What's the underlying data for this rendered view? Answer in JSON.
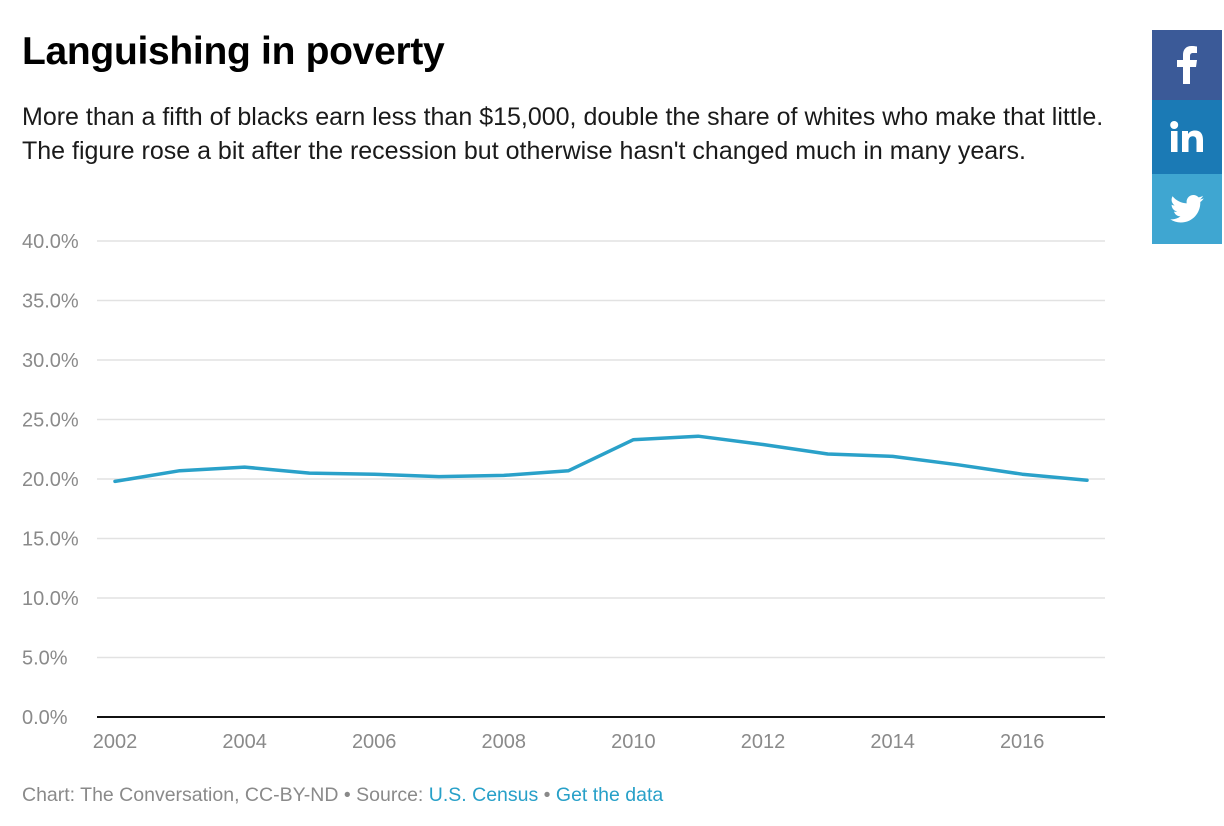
{
  "header": {
    "title": "Languishing in poverty",
    "subtitle": "More than a fifth of blacks earn less than $15,000, double the share of whites who make that little. The figure rose a bit after the recession but otherwise hasn't changed much in many years."
  },
  "share": {
    "facebook_icon": "facebook-icon",
    "linkedin_icon": "linkedin-icon",
    "twitter_icon": "twitter-icon",
    "facebook_color": "#3b5a98",
    "linkedin_color": "#1b7ab5",
    "twitter_color": "#3fa6d1"
  },
  "chart_data": {
    "type": "line",
    "title": "",
    "xlabel": "",
    "ylabel": "",
    "x": [
      2002,
      2003,
      2004,
      2005,
      2006,
      2007,
      2008,
      2009,
      2010,
      2011,
      2012,
      2013,
      2014,
      2015,
      2016,
      2017
    ],
    "series": [
      {
        "values": [
          19.8,
          20.7,
          21.0,
          20.5,
          20.4,
          20.2,
          20.3,
          20.7,
          23.3,
          23.6,
          22.9,
          22.1,
          21.9,
          21.2,
          20.4,
          19.9
        ],
        "color": "#2aa1c9"
      }
    ],
    "ylim": [
      0,
      40
    ],
    "yticks": [
      "0.0%",
      "5.0%",
      "10.0%",
      "15.0%",
      "20.0%",
      "25.0%",
      "30.0%",
      "35.0%",
      "40.0%"
    ],
    "xticks": [
      "2002",
      "2004",
      "2006",
      "2008",
      "2010",
      "2012",
      "2014",
      "2016"
    ],
    "grid": true,
    "legend": "none"
  },
  "footer": {
    "credit": "Chart: The Conversation, CC-BY-ND",
    "separator": " • ",
    "source_label": "Source: ",
    "source_link": "U.S. Census",
    "data_link": "Get the data"
  }
}
